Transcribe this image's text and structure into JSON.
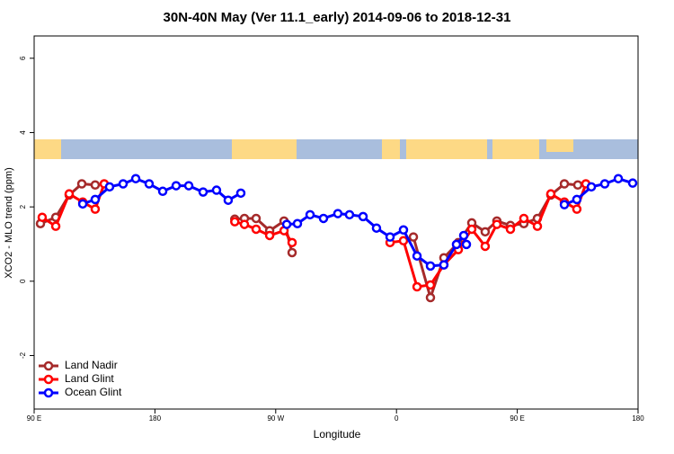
{
  "chart_data": {
    "type": "line",
    "title": "30N-40N May (Ver 11.1_early)   2014-09-06 to 2018-12-31",
    "x_label": "Longitude",
    "y_label": "XCO2 - MLO trend (ppm)",
    "xlim": [
      90,
      540
    ],
    "ylim": [
      -3.44,
      6.6
    ],
    "xticks": [
      {
        "value": 90,
        "label": "90 E"
      },
      180,
      {
        "value": 270,
        "label": "90 W"
      },
      {
        "value": 360,
        "label": "0"
      },
      {
        "value": 450,
        "label": "90 E"
      },
      {
        "value": 540,
        "label": "180"
      }
    ],
    "yticks": [
      -2,
      0,
      2,
      4,
      6
    ],
    "legend": "bottom-left",
    "series": [
      {
        "name": "Land Nadir",
        "color": "#a52a2a",
        "x": [
          94.7,
          106.1,
          116.1,
          125.5,
          135.5,
          null,
          239.5,
          246.7,
          255.4,
          265.5,
          276.2,
          282.2,
          null,
          372.6,
          385.3,
          395.3,
          406.1,
          416.1,
          426.1,
          434.8,
          444.9,
          454.9,
          465.0,
          475.0,
          485.1,
          495.1
        ],
        "values": [
          1.55,
          1.72,
          2.32,
          2.62,
          2.59,
          null,
          1.67,
          1.69,
          1.69,
          1.36,
          1.62,
          0.77,
          null,
          1.19,
          -0.44,
          0.63,
          1.04,
          1.57,
          1.33,
          1.62,
          1.5,
          1.55,
          1.69,
          2.32,
          2.62,
          2.59
        ]
      },
      {
        "name": "Land Glint",
        "color": "#ff0000",
        "x": [
          96.0,
          106.1,
          116.1,
          126.2,
          135.5,
          142.2,
          null,
          239.5,
          246.7,
          255.4,
          265.5,
          276.2,
          282.2,
          null,
          355.2,
          365.2,
          375.3,
          385.3,
          395.3,
          406.1,
          416.1,
          426.1,
          434.8,
          444.9,
          454.9,
          465.0,
          475.0,
          485.1,
          494.4,
          501.1
        ],
        "values": [
          1.72,
          1.48,
          2.35,
          2.13,
          1.94,
          2.62,
          null,
          1.6,
          1.53,
          1.4,
          1.23,
          1.36,
          1.04,
          null,
          1.04,
          1.09,
          -0.15,
          -0.1,
          0.44,
          0.85,
          1.4,
          0.94,
          1.53,
          1.4,
          1.69,
          1.48,
          2.35,
          2.13,
          1.94,
          2.62
        ]
      },
      {
        "name": "Ocean Glint",
        "color": "#0000ff",
        "x": [
          126.2,
          135.5,
          146.2,
          156.3,
          165.7,
          175.7,
          185.8,
          195.8,
          205.2,
          215.9,
          225.9,
          234.6,
          244.0,
          null,
          278.2,
          286.2,
          295.6,
          305.6,
          316.3,
          325.0,
          335.1,
          345.1,
          355.2,
          365.2,
          375.3,
          385.3,
          395.3,
          404.7,
          410.1,
          412.1,
          null,
          485.1,
          494.4,
          505.2,
          515.2,
          525.3,
          536.0
        ],
        "values": [
          2.08,
          2.2,
          2.54,
          2.62,
          2.76,
          2.62,
          2.42,
          2.57,
          2.57,
          2.4,
          2.45,
          2.18,
          2.37,
          null,
          1.53,
          1.55,
          1.79,
          1.69,
          1.82,
          1.79,
          1.74,
          1.43,
          1.19,
          1.38,
          0.68,
          0.41,
          0.44,
          0.99,
          1.23,
          0.99,
          null,
          2.06,
          2.2,
          2.54,
          2.62,
          2.76,
          2.64
        ]
      }
    ]
  }
}
